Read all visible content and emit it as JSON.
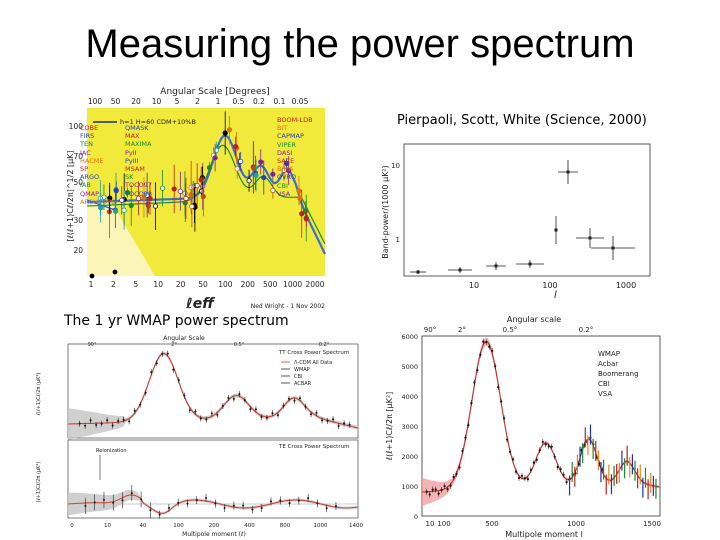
{
  "slide": {
    "title": "Measuring the power spectrum"
  },
  "captions": {
    "pierpaoli": "Pierpaoli, Scott, White (Science, 2000)",
    "wmap": "The 1 yr WMAP power spectrum"
  },
  "figure_compilation": {
    "top_axis_label": "Angular Scale [Degrees]",
    "top_ticks": [
      "100",
      "50",
      "20",
      "10",
      "5",
      "2",
      "1",
      "0.5",
      "0.2",
      "0.1",
      "0.05"
    ],
    "x_ticks": [
      "1",
      "2",
      "5",
      "10",
      "20",
      "50",
      "100",
      "200",
      "500",
      "1000",
      "2000"
    ],
    "y_ticks": [
      "20",
      "30",
      "50",
      "70",
      "100"
    ],
    "y_axis_label": "[ℓ(ℓ+1)Cℓ/2π]^1/2 [µK]",
    "x_axis_label": "ℓeff",
    "credit": "Ned Wright - 1 Nov 2002",
    "model_label": "h=1 H=60 CDM+10%B",
    "legend_left": [
      "COBE",
      "FIRS",
      "TEN",
      "IAC",
      "HACME",
      "SP",
      "ARGO",
      "IAB",
      "QMAP",
      "ARCHEOPS"
    ],
    "legend_mid": [
      "QMASK",
      "MAX",
      "MAXIMA",
      "PyII",
      "PyIII",
      "MSAM",
      "SK",
      "TOCO97",
      "TOCO98"
    ],
    "legend_right": [
      "BOOM-LDB",
      "BIT",
      "CAPMAP",
      "VIPER",
      "DASI",
      "SACE",
      "BIMA",
      "OVRO",
      "CBI",
      "VSA"
    ],
    "colors": {
      "background": "#f2ea3a",
      "model": "#3b6ed6"
    }
  },
  "figure_pierpaoli": {
    "y_axis_label": "Band-power/(1000 µK²)",
    "x_ticks": [
      "10",
      "100",
      "1000"
    ],
    "y_ticks": [
      "1",
      "10"
    ]
  },
  "figure_wmap_tt": {
    "top_axis_label": "Angular Scale",
    "top_ticks": [
      "90°",
      "2°",
      "0.5°",
      "0.2°"
    ],
    "legend_title": "TT Cross Power Spectrum",
    "legend_items": [
      "Λ-CDM All Data",
      "WMAP",
      "CBI",
      "ACBAR"
    ],
    "y_axis_label": "ℓ(ℓ+1)Cℓ/2π (µK²)",
    "y_ticks": [
      "0",
      "1000",
      "2000",
      "3000",
      "4000",
      "5000",
      "6000"
    ]
  },
  "figure_wmap_te": {
    "legend_title": "TE Cross Power Spectrum",
    "annotation": "Reionization",
    "y_axis_label": "(ℓ+1)Cℓ/2π (µK²)",
    "x_axis_label": "Multipole moment (ℓ)",
    "x_ticks": [
      "0",
      "10",
      "40",
      "100",
      "200",
      "400",
      "800",
      "1000",
      "1400"
    ]
  },
  "figure_combined": {
    "top_axis_label": "Angular scale",
    "top_ticks": [
      "90°",
      "2°",
      "0.5°",
      "0.2°"
    ],
    "y_axis_label": "ℓ(ℓ+1)Cℓ/2π [µK²]",
    "x_axis_label": "Multipole moment  l",
    "y_ticks": [
      "0",
      "1000",
      "2000",
      "3000",
      "4000",
      "5000",
      "6000"
    ],
    "x_ticks": [
      "10",
      "100",
      "500",
      "1000",
      "1500"
    ],
    "legend": [
      {
        "name": "WMAP",
        "color": "#2030b0"
      },
      {
        "name": "Acbar",
        "color": "#2030b0"
      },
      {
        "name": "Boomerang",
        "color": "#1a8a2a"
      },
      {
        "name": "CBI",
        "color": "#c02020"
      },
      {
        "name": "VSA",
        "color": "#e08a10"
      }
    ]
  }
}
